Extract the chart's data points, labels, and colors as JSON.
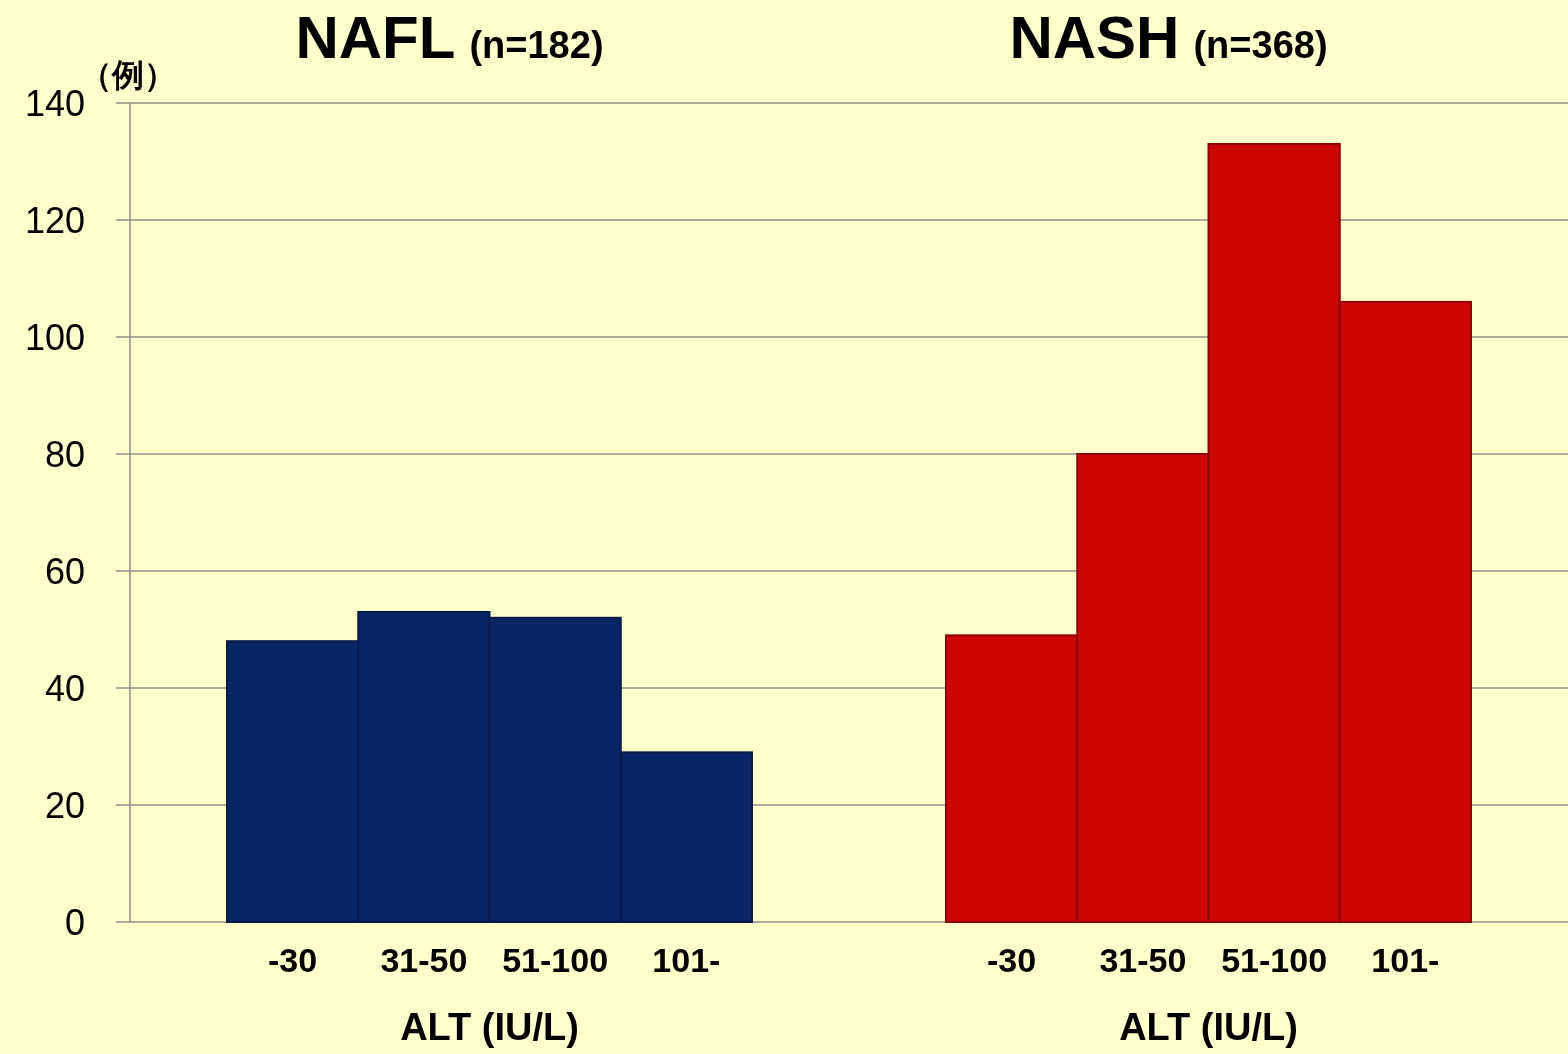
{
  "chart_data": [
    {
      "type": "bar",
      "title": "NAFL",
      "subtitle": "(n=182)",
      "ylabel": "（例）",
      "xlabel": "ALT (IU/L)",
      "categories": [
        "-30",
        "31-50",
        "51-100",
        "101-"
      ],
      "values": [
        48,
        53,
        52,
        29
      ],
      "color": "#0a2566",
      "ylim": [
        0,
        140
      ],
      "yticks": [
        0,
        20,
        40,
        60,
        80,
        100,
        120,
        140
      ],
      "grid": "y"
    },
    {
      "type": "bar",
      "title": "NASH",
      "subtitle": "(n=368)",
      "xlabel": "ALT (IU/L)",
      "categories": [
        "-30",
        "31-50",
        "51-100",
        "101-"
      ],
      "values": [
        49,
        80,
        133,
        106
      ],
      "color": "#cc0505",
      "ylim": [
        0,
        140
      ],
      "yticks": [
        0,
        20,
        40,
        60,
        80,
        100,
        120,
        140
      ],
      "grid": "y",
      "tick_labels": "x"
    }
  ]
}
